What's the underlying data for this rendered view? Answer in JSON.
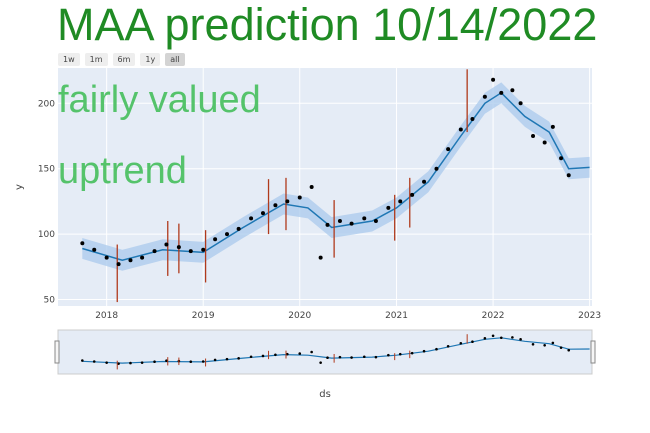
{
  "title": "MAA prediction 10/14/2022",
  "range_buttons": [
    "1w",
    "1m",
    "6m",
    "1y",
    "all"
  ],
  "active_range": "all",
  "annotations": [
    "fairly valued",
    "uptrend"
  ],
  "colors": {
    "plot_bg": "#e5ecf6",
    "band": "#a9c9ec",
    "trend": "#1f77b4",
    "actual": "#000000",
    "changepoint": "#b03a1c",
    "title": "#1f8b24",
    "annotation": "#55c36b"
  },
  "chart_data": {
    "type": "line",
    "xlabel": "ds",
    "ylabel": "y",
    "xlim": [
      "2017-07-01",
      "2023-01-10"
    ],
    "ylim": [
      45,
      227
    ],
    "x_ticks": [
      "2018",
      "2019",
      "2020",
      "2021",
      "2022",
      "2023"
    ],
    "y_ticks": [
      50,
      100,
      150,
      200
    ],
    "grid": true,
    "legend": "none",
    "series": [
      {
        "role": "actual",
        "kind": "scatter",
        "points": [
          [
            "2017-10-01",
            93
          ],
          [
            "2017-11-15",
            88
          ],
          [
            "2018-01-01",
            82
          ],
          [
            "2018-02-15",
            77
          ],
          [
            "2018-04-01",
            80
          ],
          [
            "2018-05-15",
            82
          ],
          [
            "2018-07-01",
            87
          ],
          [
            "2018-08-15",
            92
          ],
          [
            "2018-10-01",
            90
          ],
          [
            "2018-11-15",
            87
          ],
          [
            "2019-01-01",
            88
          ],
          [
            "2019-02-15",
            96
          ],
          [
            "2019-04-01",
            100
          ],
          [
            "2019-05-15",
            104
          ],
          [
            "2019-07-01",
            112
          ],
          [
            "2019-08-15",
            116
          ],
          [
            "2019-10-01",
            122
          ],
          [
            "2019-11-15",
            125
          ],
          [
            "2020-01-01",
            128
          ],
          [
            "2020-02-15",
            136
          ],
          [
            "2020-03-20",
            82
          ],
          [
            "2020-04-15",
            107
          ],
          [
            "2020-06-01",
            110
          ],
          [
            "2020-07-15",
            108
          ],
          [
            "2020-09-01",
            112
          ],
          [
            "2020-10-15",
            110
          ],
          [
            "2020-12-01",
            120
          ],
          [
            "2021-01-15",
            125
          ],
          [
            "2021-03-01",
            130
          ],
          [
            "2021-04-15",
            140
          ],
          [
            "2021-06-01",
            150
          ],
          [
            "2021-07-15",
            165
          ],
          [
            "2021-09-01",
            180
          ],
          [
            "2021-10-15",
            188
          ],
          [
            "2021-12-01",
            205
          ],
          [
            "2022-01-01",
            218
          ],
          [
            "2022-02-01",
            208
          ],
          [
            "2022-03-15",
            210
          ],
          [
            "2022-04-15",
            200
          ],
          [
            "2022-06-01",
            175
          ],
          [
            "2022-07-15",
            170
          ],
          [
            "2022-08-15",
            182
          ],
          [
            "2022-09-15",
            158
          ],
          [
            "2022-10-14",
            145
          ]
        ]
      },
      {
        "role": "forecast",
        "kind": "line",
        "points": [
          [
            "2017-10-01",
            89
          ],
          [
            "2018-03-01",
            80
          ],
          [
            "2018-08-01",
            88
          ],
          [
            "2019-01-01",
            86
          ],
          [
            "2019-06-01",
            105
          ],
          [
            "2019-11-01",
            123
          ],
          [
            "2020-02-01",
            120
          ],
          [
            "2020-05-01",
            105
          ],
          [
            "2020-10-01",
            110
          ],
          [
            "2021-01-01",
            120
          ],
          [
            "2021-05-01",
            140
          ],
          [
            "2021-09-01",
            175
          ],
          [
            "2021-12-01",
            200
          ],
          [
            "2022-02-01",
            208
          ],
          [
            "2022-05-01",
            190
          ],
          [
            "2022-08-01",
            178
          ],
          [
            "2022-10-14",
            150
          ],
          [
            "2023-01-01",
            151
          ]
        ]
      }
    ],
    "changepoints": [
      [
        "2018-02-10",
        48,
        92
      ],
      [
        "2018-08-20",
        68,
        110
      ],
      [
        "2018-10-01",
        70,
        108
      ],
      [
        "2019-01-10",
        63,
        103
      ],
      [
        "2019-09-05",
        100,
        142
      ],
      [
        "2019-11-10",
        103,
        143
      ],
      [
        "2020-05-10",
        82,
        126
      ],
      [
        "2020-12-25",
        95,
        130
      ],
      [
        "2021-02-20",
        105,
        143
      ],
      [
        "2021-09-25",
        178,
        226
      ]
    ]
  }
}
